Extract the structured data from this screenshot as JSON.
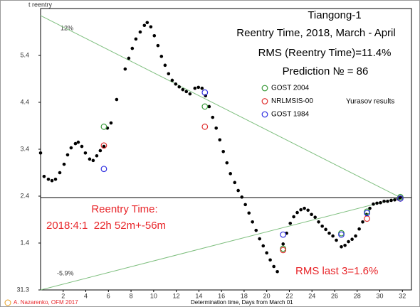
{
  "chart_data": {
    "type": "scatter",
    "title": "Tiangong-1",
    "subtitle": "Reentry Time, 2018, March - April",
    "rms": "RMS (Reentry Time)=11.4%",
    "prediction": "Prediction № = 86",
    "legend_note": "Yurasov results",
    "y_label": "t reentry",
    "x_label": "Determination time, Days from March 01",
    "credit": "A. Nazarenko, OFM 2017",
    "annotations": [
      "12%",
      "-5.9%",
      "Reentry Time:",
      "2018:4:1  22h 52m+-56m",
      "RMS last 3=1.6%"
    ],
    "xlim": [
      0,
      32.8
    ],
    "ylim": [
      0,
      6
    ],
    "xticks": [
      2,
      4,
      6,
      8,
      10,
      12,
      14,
      16,
      18,
      20,
      22,
      24,
      26,
      28,
      30,
      32
    ],
    "yticks": [
      {
        "value": 0,
        "label": "31.3"
      },
      {
        "value": 1,
        "label": "1.4"
      },
      {
        "value": 2,
        "label": "2.4"
      },
      {
        "value": 3,
        "label": "3.4"
      },
      {
        "value": 4,
        "label": "4.4"
      },
      {
        "value": 5,
        "label": "5.4"
      }
    ],
    "reference_lines": [
      {
        "x": [
          0,
          31.82
        ],
        "y": [
          5.85,
          1.97
        ],
        "color": "#7fbf7f"
      },
      {
        "x": [
          0,
          31.82
        ],
        "y": [
          0,
          1.97
        ],
        "color": "#7fbf7f"
      },
      {
        "x": [
          0,
          32.8
        ],
        "y": [
          1.97,
          1.97
        ],
        "color": "#000000"
      }
    ],
    "series": [
      {
        "color": "#000000",
        "filled": true,
        "x": [
          0.0,
          0.31,
          0.69,
          1.01,
          1.32,
          1.7,
          2.08,
          2.39,
          2.7,
          3.08,
          3.33,
          3.65,
          3.96,
          4.34,
          4.65,
          4.97,
          5.28,
          5.6,
          5.91,
          6.23,
          6.73,
          7.48,
          7.8,
          8.11,
          8.43,
          8.81,
          9.18,
          9.43,
          9.75,
          10.06,
          10.38,
          10.69,
          11.01,
          11.32,
          11.64,
          11.95,
          12.26,
          12.58,
          12.89,
          13.21,
          13.65,
          13.96,
          14.28,
          14.59,
          14.91,
          15.22,
          15.53,
          15.85,
          16.16,
          16.48,
          16.79,
          17.17,
          17.48,
          17.8,
          18.11,
          18.43,
          18.74,
          19.06,
          19.37,
          19.69,
          20.0,
          20.31,
          20.63,
          20.94,
          21.45,
          21.76,
          22.08,
          22.39,
          22.7,
          23.02,
          23.33,
          23.65,
          23.96,
          24.28,
          24.59,
          24.91,
          25.22,
          25.53,
          25.85,
          26.16,
          26.6,
          26.92,
          27.23,
          27.55,
          27.86,
          28.18,
          28.49,
          28.81,
          29.12,
          29.43,
          29.75,
          30.06,
          30.38,
          30.69,
          31.01,
          31.32,
          31.64,
          31.82
        ],
        "values": [
          2.92,
          2.42,
          2.36,
          2.33,
          2.36,
          2.5,
          2.68,
          2.88,
          3.03,
          3.12,
          3.15,
          3.06,
          2.92,
          2.79,
          2.76,
          2.86,
          2.97,
          3.06,
          3.45,
          3.56,
          4.06,
          4.71,
          4.94,
          5.15,
          5.35,
          5.5,
          5.64,
          5.7,
          5.61,
          5.42,
          5.21,
          4.98,
          4.79,
          4.61,
          4.47,
          4.39,
          4.33,
          4.27,
          4.23,
          4.18,
          4.3,
          4.32,
          4.3,
          4.14,
          3.91,
          3.68,
          3.45,
          3.2,
          2.95,
          2.71,
          2.48,
          2.29,
          2.12,
          1.98,
          1.82,
          1.64,
          1.45,
          1.27,
          1.09,
          0.94,
          0.79,
          0.64,
          0.5,
          0.39,
          0.98,
          1.21,
          1.42,
          1.56,
          1.65,
          1.71,
          1.74,
          1.7,
          1.61,
          1.55,
          1.45,
          1.36,
          1.29,
          1.21,
          1.15,
          1.06,
          0.92,
          0.95,
          1.03,
          1.08,
          1.15,
          1.3,
          1.45,
          1.61,
          1.74,
          1.83,
          1.85,
          1.86,
          1.89,
          1.89,
          1.91,
          1.92,
          1.94,
          1.97
        ]
      },
      {
        "name": "GOST 2004",
        "color": "#3a9a3a",
        "filled": false,
        "x": [
          5.6,
          14.53,
          21.45,
          26.6,
          28.87,
          31.82
        ],
        "values": [
          3.48,
          3.91,
          0.88,
          1.21,
          1.67,
          1.98
        ]
      },
      {
        "name": "NRLMSIS-00",
        "color": "#e03030",
        "filled": false,
        "x": [
          5.6,
          14.53,
          21.45,
          28.87,
          31.82
        ],
        "values": [
          3.08,
          3.48,
          0.85,
          1.52,
          1.95
        ]
      },
      {
        "name": "GOST 1984",
        "color": "#3030e0",
        "filled": false,
        "x": [
          5.6,
          14.53,
          21.45,
          26.6,
          28.87,
          31.82
        ],
        "values": [
          2.58,
          4.21,
          1.18,
          1.18,
          1.64,
          1.95
        ]
      }
    ]
  }
}
